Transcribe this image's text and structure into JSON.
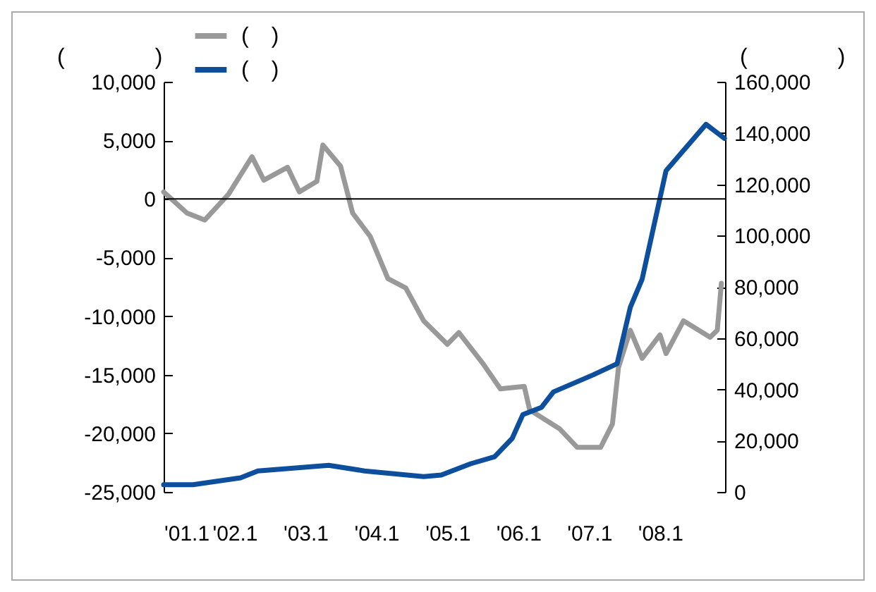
{
  "chart_data": {
    "type": "line",
    "ylabel": "(　　　　)",
    "y2label": "(　　　　)",
    "xlim": [
      "2001-01",
      "2008-12"
    ],
    "xticks": [
      {
        "value": "2001-01",
        "label": "'01.1"
      },
      {
        "value": "2002-01",
        "label": "'02.1"
      },
      {
        "value": "2003-01",
        "label": "'03.1"
      },
      {
        "value": "2004-01",
        "label": "'04.1"
      },
      {
        "value": "2005-01",
        "label": "'05.1"
      },
      {
        "value": "2006-01",
        "label": "'06.1"
      },
      {
        "value": "2007-01",
        "label": "'07.1"
      },
      {
        "value": "2008-01",
        "label": "'08.1"
      }
    ],
    "ylim": [
      -25000,
      10000
    ],
    "yticks": [
      {
        "value": -25000,
        "label": "-25,000"
      },
      {
        "value": -20000,
        "label": "-20,000"
      },
      {
        "value": -15000,
        "label": "-15,000"
      },
      {
        "value": -10000,
        "label": "-10,000"
      },
      {
        "value": -5000,
        "label": "-5,000"
      },
      0,
      {
        "value": 5000,
        "label": "5,000"
      },
      {
        "value": 10000,
        "label": "10,000"
      }
    ],
    "y2lim": [
      0,
      160000
    ],
    "y2ticks": [
      0,
      {
        "value": 20000,
        "label": "20,000"
      },
      {
        "value": 40000,
        "label": "40,000"
      },
      {
        "value": 60000,
        "label": "60,000"
      },
      {
        "value": 80000,
        "label": "80,000"
      },
      {
        "value": 100000,
        "label": "100,000"
      },
      {
        "value": 120000,
        "label": "120,000"
      },
      {
        "value": 140000,
        "label": "140,000"
      },
      {
        "value": 160000,
        "label": "160,000"
      }
    ],
    "ref_lines": [
      {
        "axis": "y",
        "value": 0,
        "color": "#000000"
      }
    ],
    "legend": "top left",
    "line_style": "solid",
    "marker": "none",
    "series": [
      {
        "name": "(　)",
        "color": "#999999",
        "x": [
          "2001-01",
          "2001-05",
          "2001-08",
          "2001-12",
          "2002-04",
          "2002-06",
          "2002-10",
          "2002-12",
          "2003-03",
          "2003-04",
          "2003-07",
          "2003-09",
          "2003-12",
          "2004-03",
          "2004-06",
          "2004-09",
          "2005-01",
          "2005-03",
          "2005-07",
          "2005-10",
          "2006-02",
          "2006-03",
          "2006-08",
          "2006-11",
          "2007-03",
          "2007-05",
          "2007-06",
          "2007-08",
          "2007-10",
          "2008-01",
          "2008-02",
          "2008-05",
          "2008-09-15",
          "2008-10-22",
          "2008-11-12"
        ],
        "values": [
          600,
          -1200,
          -1800,
          400,
          3600,
          1600,
          2700,
          600,
          1500,
          4600,
          2800,
          -1200,
          -3200,
          -6800,
          -7600,
          -10400,
          -12400,
          -11400,
          -14000,
          -16200,
          -16000,
          -18000,
          -19600,
          -21200,
          -21200,
          -19200,
          -14400,
          -11200,
          -13600,
          -11600,
          -13200,
          -10400,
          -11800,
          -11200,
          -7200
        ]
      },
      {
        "name": "(　)",
        "color": "#0d4f9c",
        "axis": "y2",
        "x": [
          "2001-01",
          "2001-06",
          "2002-02",
          "2002-05",
          "2003-05",
          "2003-11",
          "2004-09",
          "2004-12",
          "2005-05",
          "2005-09",
          "2005-12",
          "2006-01-25",
          "2006-05",
          "2006-07",
          "2007-01-20",
          "2007-05-25",
          "2007-08",
          "2007-10",
          "2007-12-15",
          "2008-02",
          "2008-08-25",
          "2008-11-28"
        ],
        "values": [
          2800,
          2800,
          5500,
          8200,
          10400,
          8200,
          6000,
          6600,
          11000,
          13700,
          20900,
          30200,
          33000,
          39000,
          45600,
          50000,
          72000,
          83000,
          108800,
          125300,
          143400,
          137900
        ]
      }
    ]
  }
}
